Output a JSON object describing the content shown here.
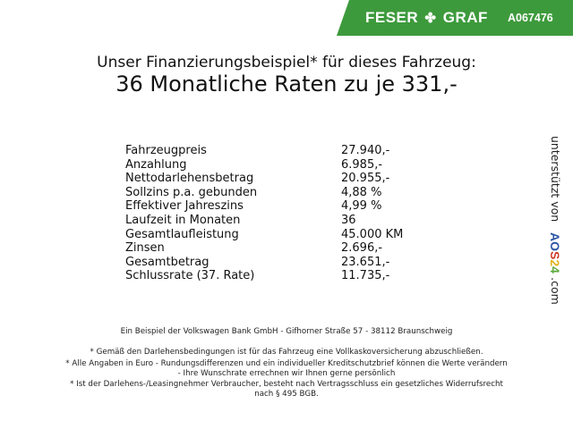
{
  "header": {
    "brand_left": "FESER",
    "brand_icon": "clover-icon",
    "brand_right": "GRAF",
    "vehicle_code": "A067476",
    "banner_color": "#3d9a3c"
  },
  "title": {
    "line1": "Unser Finanzierungsbeispiel* für dieses Fahrzeug:",
    "line2": "36 Monatliche Raten zu je 331,-"
  },
  "rows": [
    {
      "label": "Fahrzeugpreis",
      "value": "27.940,-"
    },
    {
      "label": "Anzahlung",
      "value": "6.985,-"
    },
    {
      "label": "Nettodarlehensbetrag",
      "value": "20.955,-"
    },
    {
      "label": "Sollzins p.a. gebunden",
      "value": "4,88 %"
    },
    {
      "label": "Effektiver Jahreszins",
      "value": "4,99 %"
    },
    {
      "label": "Laufzeit in Monaten",
      "value": "36"
    },
    {
      "label": "Gesamtlaufleistung",
      "value": "45.000 KM"
    },
    {
      "label": "Zinsen",
      "value": "2.696,-"
    },
    {
      "label": "Gesamtbetrag",
      "value": "23.651,-"
    },
    {
      "label": "Schlussrate (37. Rate)",
      "value": "11.735,-"
    }
  ],
  "side": {
    "prefix": "unterstützt von",
    "logo": "AOS24",
    "suffix": ".com"
  },
  "footer": {
    "bank": "Ein Beispiel der Volkswagen Bank GmbH - Gifhorner Straße 57 - 38112 Braunschweig",
    "note1": "* Gemäß den Darlehensbedingungen ist für das Fahrzeug eine Vollkaskoversicherung abzuschließen.",
    "note2a": "* Alle Angaben in Euro - Rundungsdifferenzen und ein individueller Kreditschutzbrief können die Werte verändern",
    "note2b": "- Ihre Wunschrate errechnen wir Ihnen gerne persönlich",
    "note3a": "* Ist der Darlehens-/Leasingnehmer Verbraucher, besteht nach Vertragsschluss ein gesetzliches Widerrufsrecht",
    "note3b": "nach § 495 BGB."
  }
}
